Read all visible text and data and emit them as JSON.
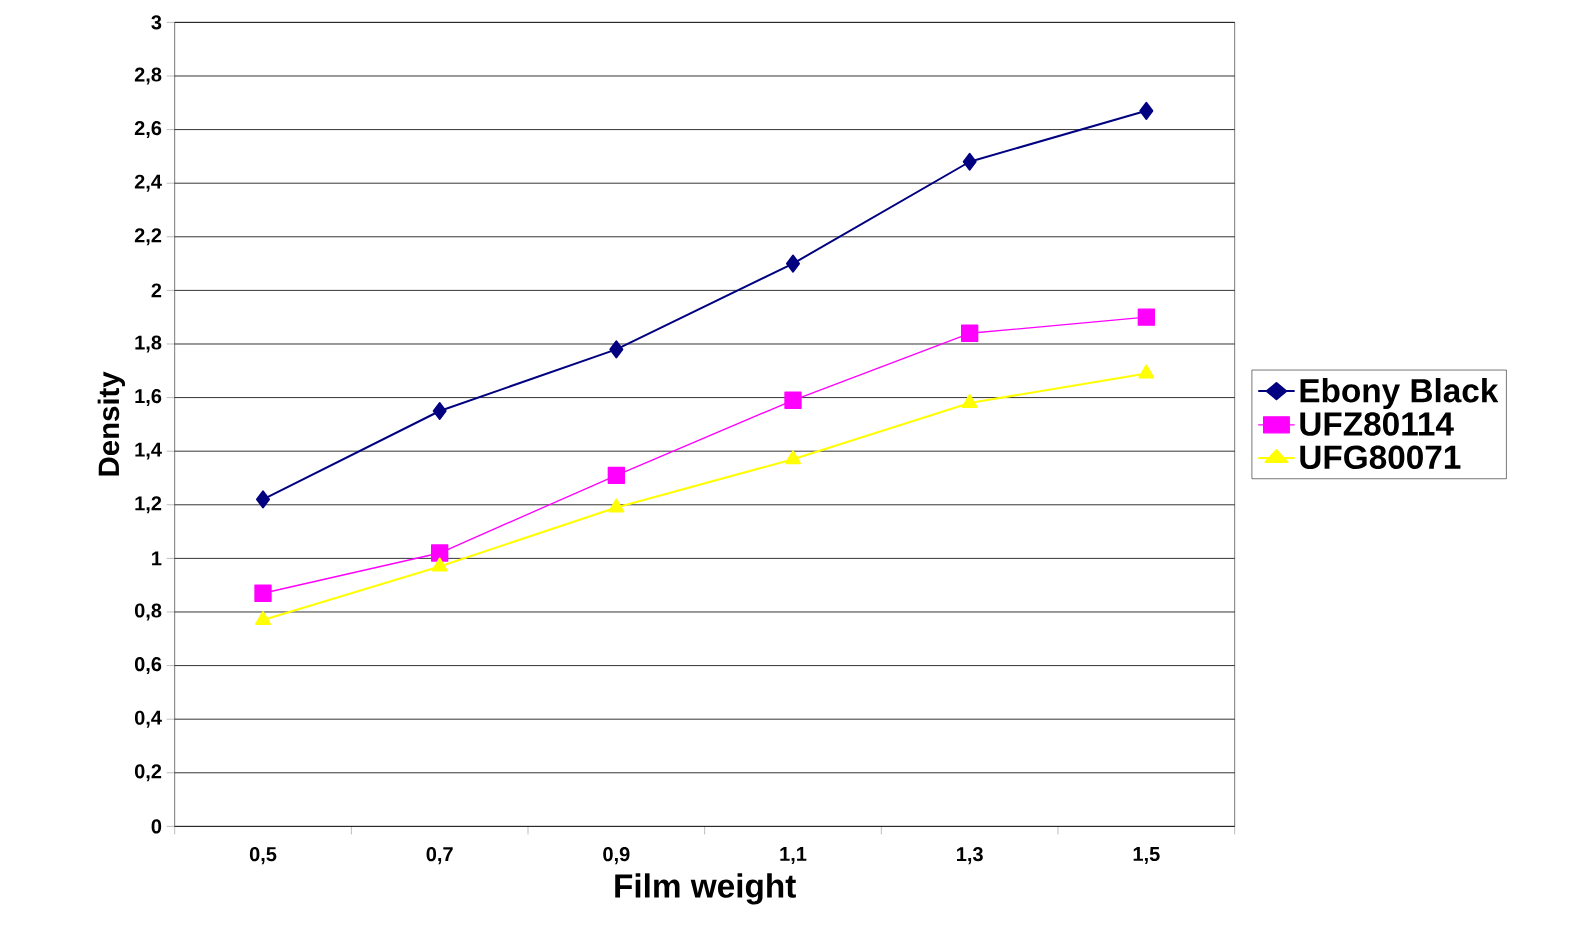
{
  "chart_data": {
    "type": "line",
    "xlabel": "Film weight",
    "ylabel": "Density",
    "categories": [
      "0,5",
      "0,7",
      "0,9",
      "1,1",
      "1,3",
      "1,5"
    ],
    "series": [
      {
        "name": "Ebony Black",
        "color": "#000080",
        "marker": "diamond",
        "values": [
          1.22,
          1.55,
          1.78,
          2.1,
          2.48,
          2.67
        ]
      },
      {
        "name": "UFZ80114",
        "color": "#ff00ff",
        "marker": "square",
        "values": [
          0.87,
          1.02,
          1.31,
          1.59,
          1.84,
          1.9
        ]
      },
      {
        "name": "UFG80071",
        "color": "#ffff00",
        "marker": "triangle",
        "values": [
          0.77,
          0.97,
          1.19,
          1.37,
          1.58,
          1.69
        ]
      }
    ],
    "ylim": [
      0,
      3
    ],
    "yticks": [
      0,
      {
        "value": 0.2,
        "label": "0,2"
      },
      {
        "value": 0.4,
        "label": "0,4"
      },
      {
        "value": 0.6,
        "label": "0,6"
      },
      {
        "value": 0.8,
        "label": "0,8"
      },
      1,
      {
        "value": 1.2,
        "label": "1,2"
      },
      {
        "value": 1.4,
        "label": "1,4"
      },
      {
        "value": 1.6,
        "label": "1,6"
      },
      {
        "value": 1.8,
        "label": "1,8"
      },
      2,
      {
        "value": 2.2,
        "label": "2,2"
      },
      {
        "value": 2.4,
        "label": "2,4"
      },
      {
        "value": 2.6,
        "label": "2,6"
      },
      {
        "value": 2.8,
        "label": "2,8"
      },
      3
    ],
    "grid": "y",
    "legend": "right",
    "line_style": "solid"
  }
}
